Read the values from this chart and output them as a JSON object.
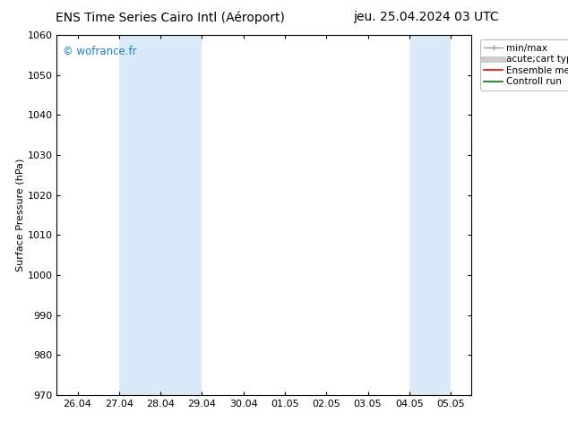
{
  "title_left": "ENS Time Series Cairo Intl (Aéroport)",
  "title_right": "jeu. 25.04.2024 03 UTC",
  "ylabel": "Surface Pressure (hPa)",
  "ylim": [
    970,
    1060
  ],
  "yticks": [
    970,
    980,
    990,
    1000,
    1010,
    1020,
    1030,
    1040,
    1050,
    1060
  ],
  "xtick_labels": [
    "26.04",
    "27.04",
    "28.04",
    "29.04",
    "30.04",
    "01.05",
    "02.05",
    "03.05",
    "04.05",
    "05.05"
  ],
  "xtick_positions": [
    0,
    1,
    2,
    3,
    4,
    5,
    6,
    7,
    8,
    9
  ],
  "xlim": [
    -0.5,
    9.5
  ],
  "shaded_bands": [
    {
      "x_start": 1,
      "x_end": 2,
      "color": "#daeaf8"
    },
    {
      "x_start": 2,
      "x_end": 3,
      "color": "#daeaf8"
    },
    {
      "x_start": 8,
      "x_end": 8.5,
      "color": "#daeaf8"
    },
    {
      "x_start": 8.5,
      "x_end": 9,
      "color": "#daeaf8"
    }
  ],
  "watermark": "© wofrance.fr",
  "watermark_color": "#1e7fd4",
  "legend_entries": [
    {
      "label": "min/max",
      "color": "#999999",
      "lw": 1.0
    },
    {
      "label": "acute;cart type",
      "color": "#cccccc",
      "lw": 5
    },
    {
      "label": "Ensemble mean run",
      "color": "#ff0000",
      "lw": 1.2
    },
    {
      "label": "Controll run",
      "color": "#007700",
      "lw": 1.2
    }
  ],
  "bg_color": "#ffffff",
  "plot_bg_color": "#ffffff",
  "spine_color": "#000000",
  "title_fontsize": 10,
  "label_fontsize": 8,
  "tick_fontsize": 8,
  "legend_fontsize": 7.5
}
